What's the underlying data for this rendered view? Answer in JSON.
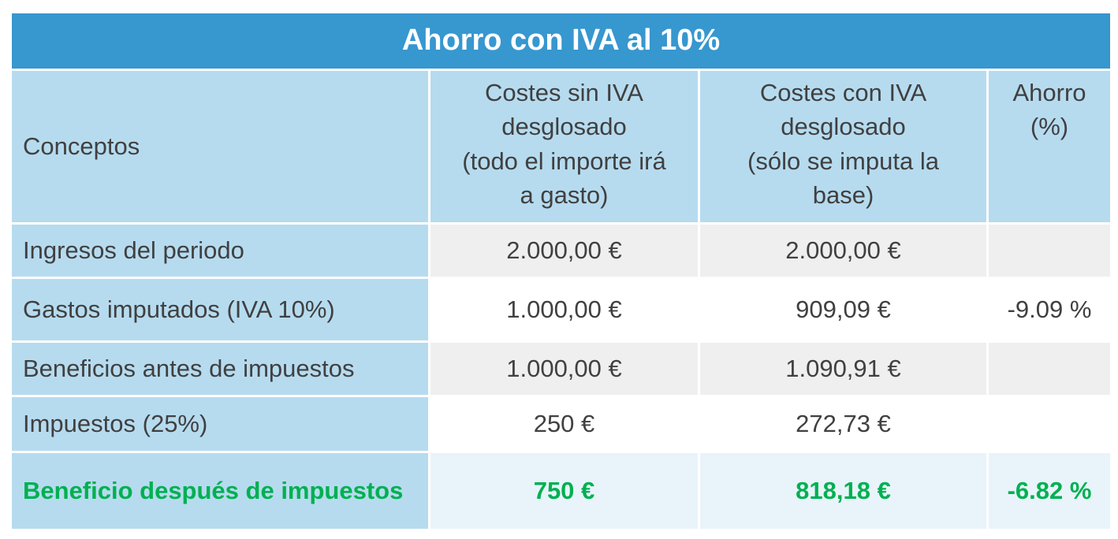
{
  "title": "Ahorro con IVA al 10%",
  "headers": {
    "concept": "Conceptos",
    "cost_without_vat": [
      "Costes sin IVA",
      "desglosado",
      "(todo el importe irá",
      "a gasto)"
    ],
    "cost_with_vat": [
      "Costes con IVA",
      "desglosado",
      "(sólo se imputa la",
      "base)"
    ],
    "saving": [
      "Ahorro",
      "(%)"
    ]
  },
  "rows": [
    {
      "concept": "Ingresos del periodo",
      "without_vat": "2.000,00 €",
      "with_vat": "2.000,00 €",
      "saving": ""
    },
    {
      "concept": "Gastos imputados (IVA  10%)",
      "without_vat": "1.000,00 €",
      "with_vat": "909,09 €",
      "saving": "-9.09 %"
    },
    {
      "concept": "Beneficios antes de impuestos",
      "without_vat": "1.000,00 €",
      "with_vat": "1.090,91 €",
      "saving": ""
    },
    {
      "concept": "Impuestos (25%)",
      "without_vat": "250 €",
      "with_vat": "272,73 €",
      "saving": ""
    },
    {
      "concept": "Beneficio después de impuestos",
      "without_vat": "750 €",
      "with_vat": "818,18 €",
      "saving": "-6.82 %"
    }
  ],
  "colors": {
    "title_bg": "#3797cf",
    "header_bg": "#b6dbef",
    "total_text": "#00b050"
  }
}
